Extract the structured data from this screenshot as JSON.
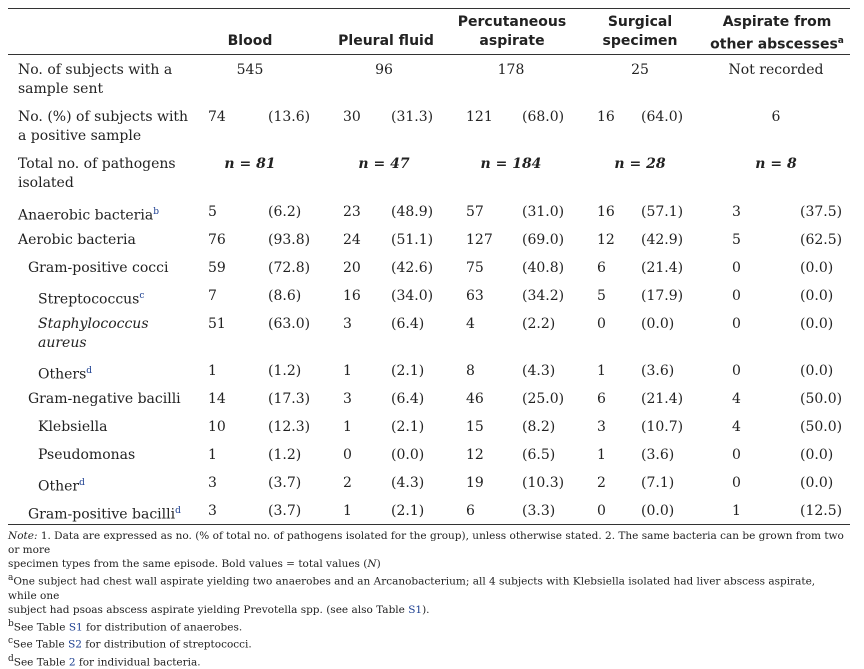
{
  "headers": [
    "Blood",
    "Pleural fluid",
    "Percutaneous aspirate",
    "Surgical specimen",
    "Aspirate from other abscesses"
  ],
  "header_lines": {
    "h0": [
      "Blood"
    ],
    "h1": [
      "Pleural fluid"
    ],
    "h2": [
      "Percutaneous",
      "aspirate"
    ],
    "h3": [
      "Surgical",
      "specimen"
    ],
    "h4": [
      "Aspirate from",
      "other abscesses"
    ],
    "h4_sup": "a"
  },
  "rows": {
    "subjects_sent": {
      "label1": "No. of subjects with a",
      "label2": "sample sent",
      "values": [
        "545",
        "96",
        "178",
        "25",
        "Not recorded"
      ]
    },
    "subjects_positive": {
      "label1": "No. (%) of subjects with",
      "label2": "a positive sample",
      "values": [
        [
          "74",
          "(13.6)"
        ],
        [
          "30",
          "(31.3)"
        ],
        [
          "121",
          "(68.0)"
        ],
        [
          "16",
          "(64.0)"
        ],
        [
          "6",
          ""
        ]
      ]
    },
    "total_pathogens": {
      "label1": "Total no. of pathogens",
      "label2": "isolated",
      "values": [
        "n = 81",
        "n = 47",
        "n = 184",
        "n = 28",
        "n = 8"
      ]
    },
    "anaerobic": {
      "label": "Anaerobic bacteria",
      "sup": "b",
      "values": [
        [
          "5",
          "(6.2)"
        ],
        [
          "23",
          "(48.9)"
        ],
        [
          "57",
          "(31.0)"
        ],
        [
          "16",
          "(57.1)"
        ],
        [
          "3",
          "(37.5)"
        ]
      ]
    },
    "aerobic": {
      "label": "Aerobic bacteria",
      "values": [
        [
          "76",
          "(93.8)"
        ],
        [
          "24",
          "(51.1)"
        ],
        [
          "127",
          "(69.0)"
        ],
        [
          "12",
          "(42.9)"
        ],
        [
          "5",
          "(62.5)"
        ]
      ]
    },
    "gp_cocci": {
      "label": "Gram-positive cocci",
      "values": [
        [
          "59",
          "(72.8)"
        ],
        [
          "20",
          "(42.6)"
        ],
        [
          "75",
          "(40.8)"
        ],
        [
          "6",
          "(21.4)"
        ],
        [
          "0",
          "(0.0)"
        ]
      ]
    },
    "strep": {
      "label": "Streptococcus",
      "sup": "c",
      "values": [
        [
          "7",
          "(8.6)"
        ],
        [
          "16",
          "(34.0)"
        ],
        [
          "63",
          "(34.2)"
        ],
        [
          "5",
          "(17.9)"
        ],
        [
          "0",
          "(0.0)"
        ]
      ]
    },
    "staph": {
      "label1": "Staphylococcus",
      "label2": "aureus",
      "values": [
        [
          "51",
          "(63.0)"
        ],
        [
          "3",
          "(6.4)"
        ],
        [
          "4",
          "(2.2)"
        ],
        [
          "0",
          "(0.0)"
        ],
        [
          "0",
          "(0.0)"
        ]
      ]
    },
    "others": {
      "label": "Others",
      "sup": "d",
      "values": [
        [
          "1",
          "(1.2)"
        ],
        [
          "1",
          "(2.1)"
        ],
        [
          "8",
          "(4.3)"
        ],
        [
          "1",
          "(3.6)"
        ],
        [
          "0",
          "(0.0)"
        ]
      ]
    },
    "gn_bacilli": {
      "label": "Gram-negative bacilli",
      "values": [
        [
          "14",
          "(17.3)"
        ],
        [
          "3",
          "(6.4)"
        ],
        [
          "46",
          "(25.0)"
        ],
        [
          "6",
          "(21.4)"
        ],
        [
          "4",
          "(50.0)"
        ]
      ]
    },
    "klebsiella": {
      "label": "Klebsiella",
      "values": [
        [
          "10",
          "(12.3)"
        ],
        [
          "1",
          "(2.1)"
        ],
        [
          "15",
          "(8.2)"
        ],
        [
          "3",
          "(10.7)"
        ],
        [
          "4",
          "(50.0)"
        ]
      ]
    },
    "pseudomonas": {
      "label": "Pseudomonas",
      "values": [
        [
          "1",
          "(1.2)"
        ],
        [
          "0",
          "(0.0)"
        ],
        [
          "12",
          "(6.5)"
        ],
        [
          "1",
          "(3.6)"
        ],
        [
          "0",
          "(0.0)"
        ]
      ]
    },
    "other": {
      "label": "Other",
      "sup": "d",
      "values": [
        [
          "3",
          "(3.7)"
        ],
        [
          "2",
          "(4.3)"
        ],
        [
          "19",
          "(10.3)"
        ],
        [
          "2",
          "(7.1)"
        ],
        [
          "0",
          "(0.0)"
        ]
      ]
    },
    "gp_bacilli": {
      "label": "Gram-positive bacilli",
      "sup": "d",
      "values": [
        [
          "3",
          "(3.7)"
        ],
        [
          "1",
          "(2.1)"
        ],
        [
          "6",
          "(3.3)"
        ],
        [
          "0",
          "(0.0)"
        ],
        [
          "1",
          "(12.5)"
        ]
      ]
    }
  },
  "notes": {
    "note_label": "Note:",
    "note1": " 1. Data are expressed as no. (% of total no. of pathogens isolated for the group), unless otherwise stated. 2. The same bacteria can be grown from two or more",
    "note2": "specimen types from the same episode. Bold values = total values (",
    "note2_n": "N",
    "note2_end": ")",
    "fa_sup": "a",
    "fa1": "One subject had chest wall aspirate yielding two anaerobes and an Arcanobacterium; all 4 subjects with Klebsiella isolated had liver abscess aspirate, while one",
    "fa2a": "subject had psoas abscess aspirate yielding Prevotella spp. (see also Table ",
    "fa2_link": "S1",
    "fa2b": ").",
    "fb_sup": "b",
    "fb_a": "See Table ",
    "fb_link": "S1",
    "fb_b": " for distribution of anaerobes.",
    "fc_sup": "c",
    "fc_a": "See Table ",
    "fc_link": "S2",
    "fc_b": " for distribution of streptococci.",
    "fd_sup": "d",
    "fd_a": "See Table ",
    "fd_link": "2",
    "fd_b": " for individual bacteria."
  }
}
